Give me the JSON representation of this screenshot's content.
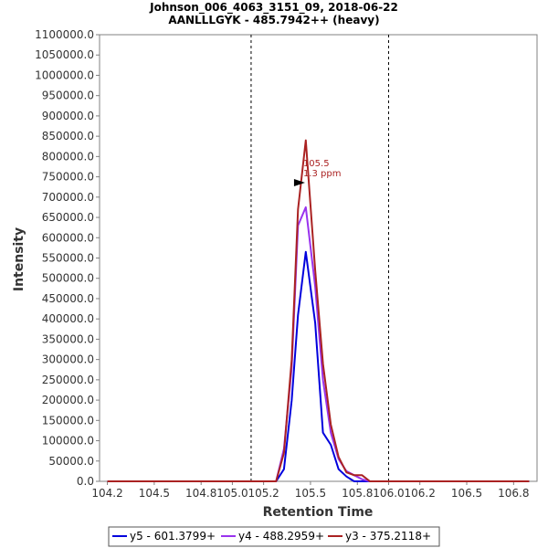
{
  "chart_data": {
    "type": "line",
    "title": "Johnson_006_4063_3151_09, 2018-06-22",
    "subtitle": "AANLLLGYK - 485.7942++ (heavy)",
    "xlabel": "Retention Time",
    "ylabel": "Intensity",
    "xlim": [
      104.15,
      106.95
    ],
    "ylim": [
      0,
      1100000
    ],
    "x_ticks": [
      104.2,
      104.5,
      104.8,
      105.0,
      105.2,
      105.5,
      105.8,
      106.0,
      106.2,
      106.5,
      106.8
    ],
    "x_tick_labels": [
      "104.2",
      "104.5",
      "104.8",
      "105.0",
      "105.2",
      "105.5",
      "105.8",
      "106.0",
      "106.2",
      "106.5",
      "106.8"
    ],
    "y_ticks": [
      0,
      50000,
      100000,
      150000,
      200000,
      250000,
      300000,
      350000,
      400000,
      450000,
      500000,
      550000,
      600000,
      650000,
      700000,
      750000,
      800000,
      850000,
      900000,
      950000,
      1000000,
      1050000,
      1100000
    ],
    "y_tick_labels": [
      "0.0",
      "50000.0",
      "100000.0",
      "150000.0",
      "200000.0",
      "250000.0",
      "300000.0",
      "350000.0",
      "400000.0",
      "450000.0",
      "500000.0",
      "550000.0",
      "600000.0",
      "650000.0",
      "700000.0",
      "750000.0",
      "800000.0",
      "850000.0",
      "900000.0",
      "950000.0",
      "1000000.0",
      "1050000.0",
      "1100000.0"
    ],
    "integration_bounds": [
      105.12,
      106.0
    ],
    "legend_position": "bottom-center",
    "series": [
      {
        "name": "y5 - 601.3799+",
        "color": "#0000dd",
        "x": [
          104.2,
          105.28,
          105.33,
          105.38,
          105.42,
          105.47,
          105.53,
          105.58,
          105.63,
          105.68,
          105.73,
          105.78,
          105.83,
          105.88,
          105.92,
          105.97,
          106.9
        ],
        "y": [
          0,
          0,
          30000,
          200000,
          410000,
          565000,
          390000,
          120000,
          90000,
          30000,
          12000,
          0,
          0,
          0,
          0,
          0,
          0
        ]
      },
      {
        "name": "y4 - 488.2959+",
        "color": "#9933ee",
        "x": [
          104.2,
          105.28,
          105.33,
          105.38,
          105.42,
          105.47,
          105.53,
          105.58,
          105.63,
          105.68,
          105.73,
          105.78,
          105.83,
          105.88,
          105.92,
          105.97,
          106.9
        ],
        "y": [
          0,
          0,
          80000,
          280000,
          630000,
          675000,
          480000,
          250000,
          120000,
          55000,
          25000,
          15000,
          5000,
          0,
          0,
          0,
          0
        ]
      },
      {
        "name": "y3 - 375.2118+",
        "color": "#aa2222",
        "x": [
          104.2,
          105.28,
          105.33,
          105.38,
          105.42,
          105.47,
          105.53,
          105.58,
          105.63,
          105.68,
          105.73,
          105.78,
          105.83,
          105.88,
          105.92,
          105.97,
          106.9
        ],
        "y": [
          0,
          0,
          70000,
          300000,
          670000,
          840000,
          520000,
          290000,
          140000,
          60000,
          22000,
          15000,
          15000,
          0,
          0,
          0,
          0
        ]
      }
    ],
    "annotation": {
      "line1": "105.5",
      "line2": "1.3 ppm",
      "color": "#aa2222",
      "x": 105.5,
      "y": 740000
    }
  }
}
